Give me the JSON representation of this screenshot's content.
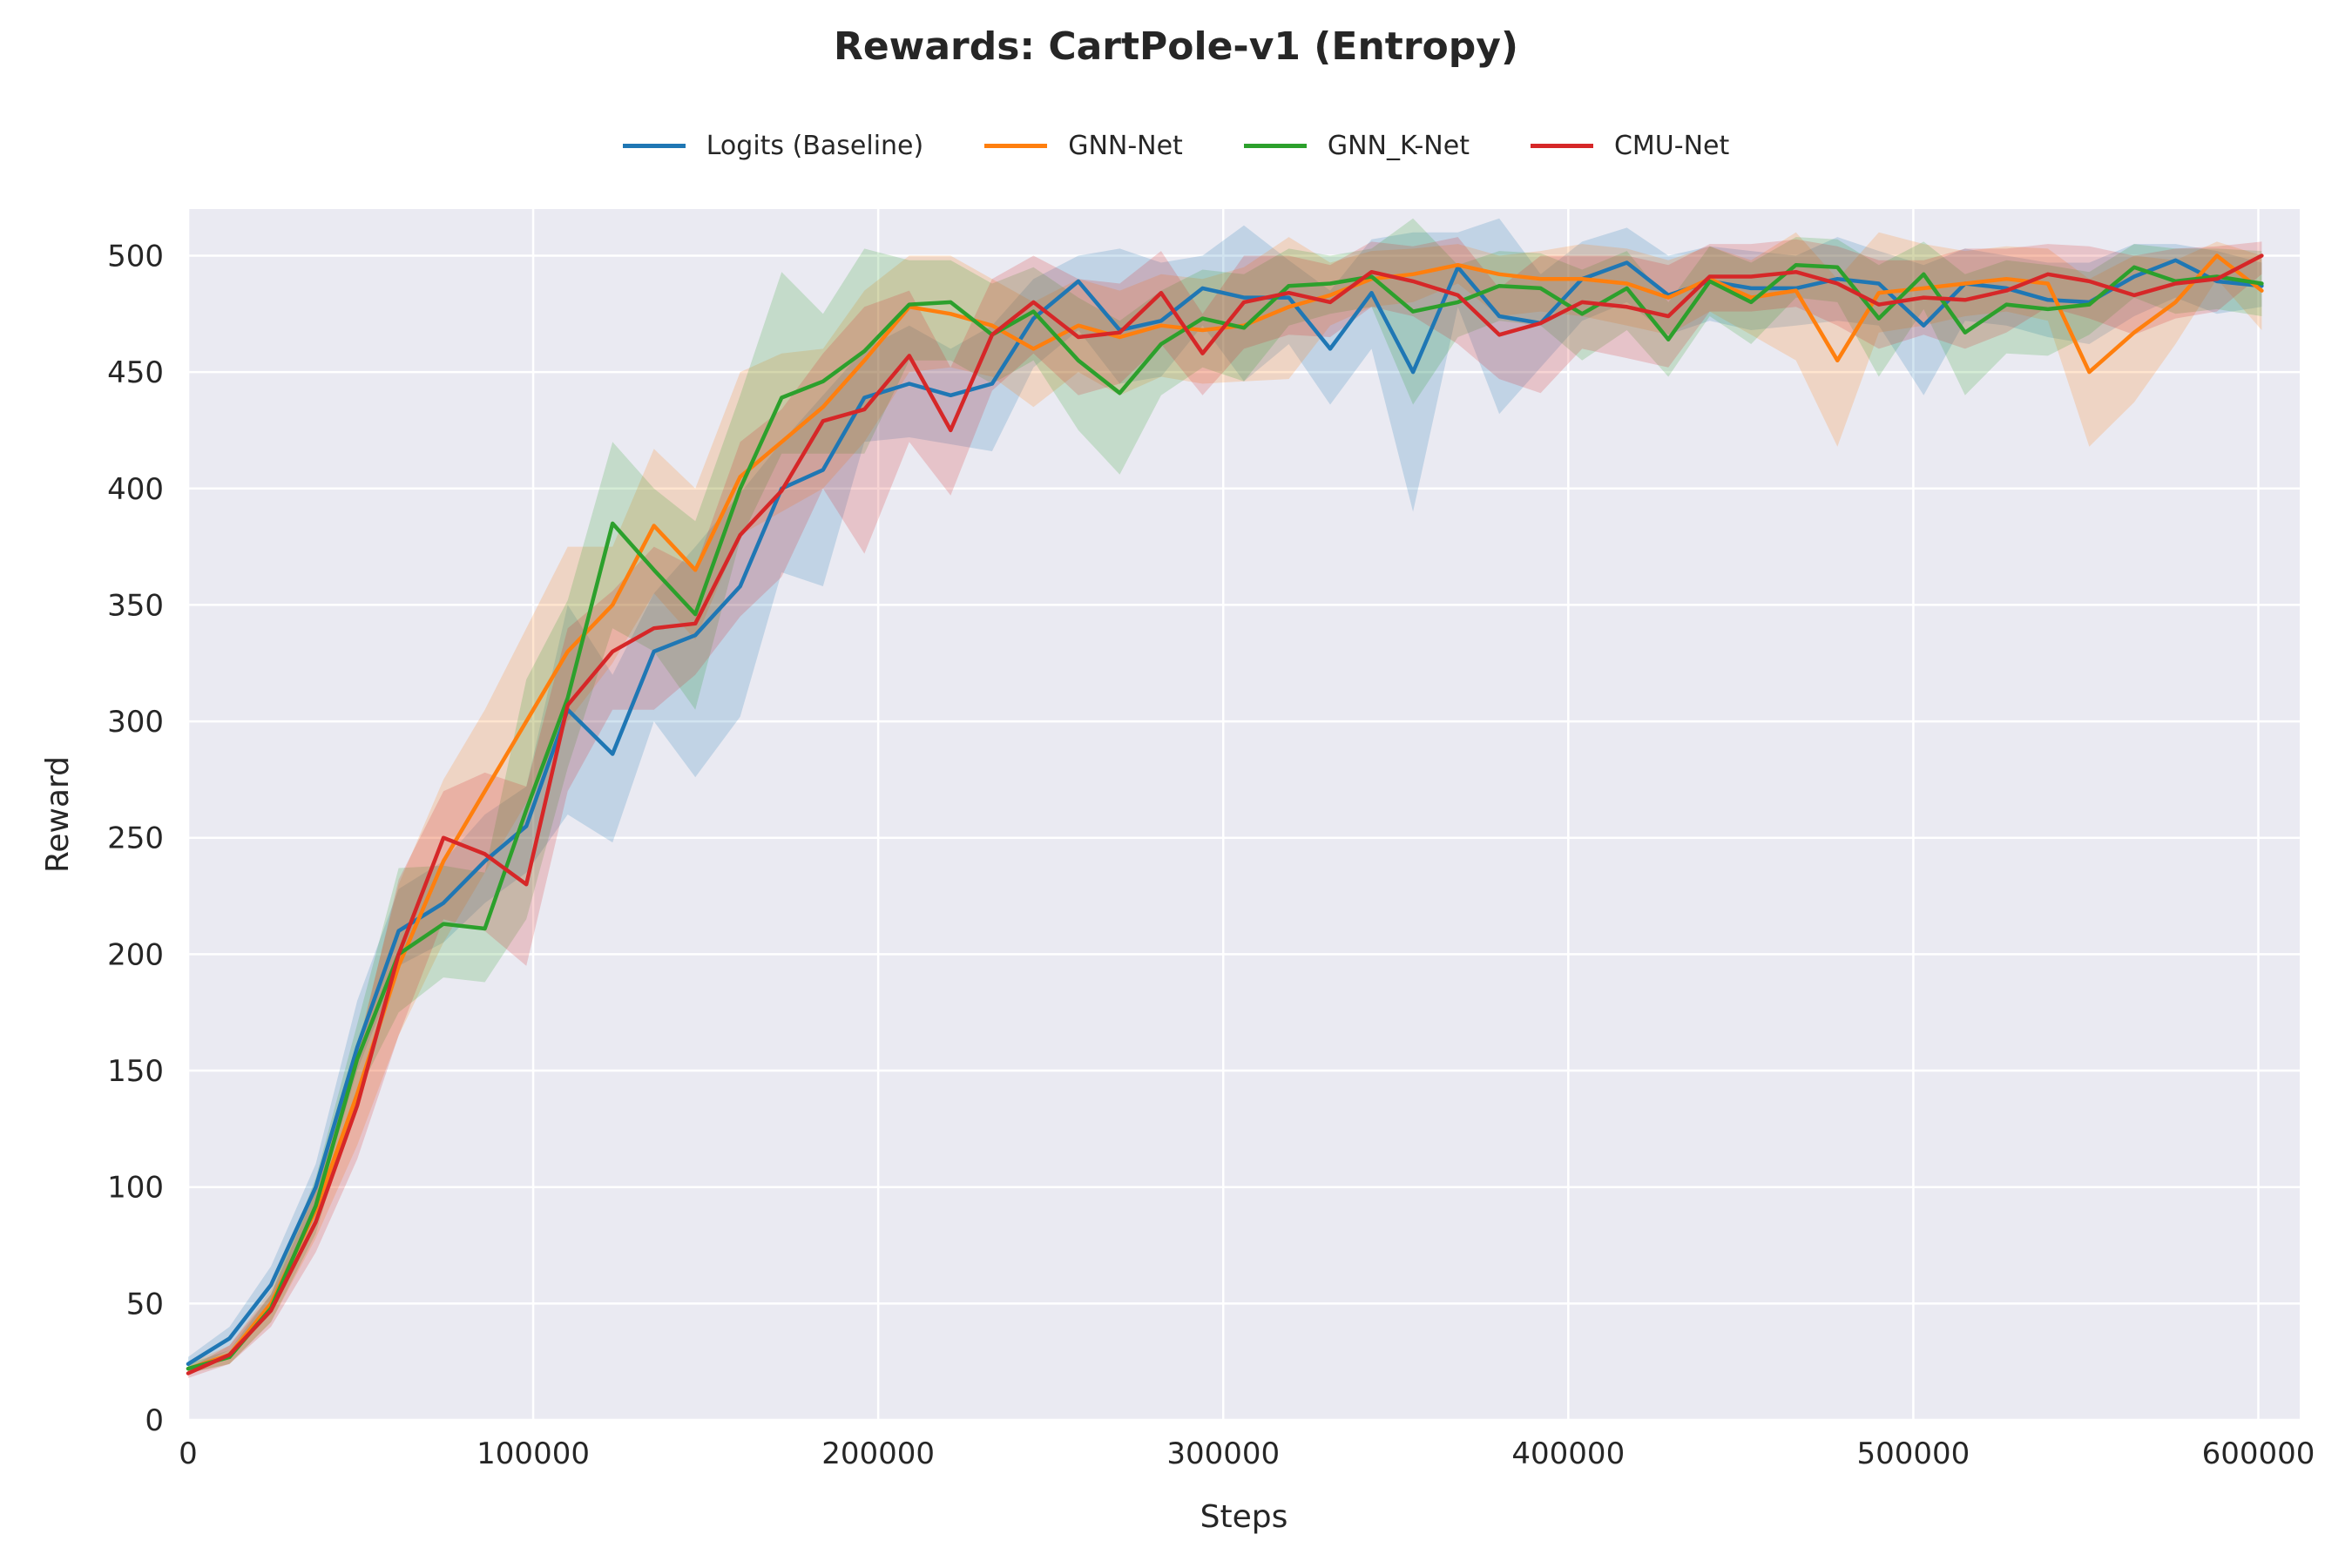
{
  "chart_data": {
    "type": "line",
    "title": "Rewards: CartPole-v1 (Entropy)",
    "xlabel": "Steps",
    "ylabel": "Reward",
    "xlim": [
      0,
      612000
    ],
    "ylim": [
      0,
      520
    ],
    "xticks": [
      0,
      100000,
      200000,
      300000,
      400000,
      500000,
      600000
    ],
    "yticks": [
      0,
      50,
      100,
      150,
      200,
      250,
      300,
      350,
      400,
      450,
      500
    ],
    "grid": true,
    "legend": "top-center",
    "x": [
      0,
      12000,
      24000,
      37000,
      49000,
      61000,
      74000,
      86000,
      98000,
      110000,
      123000,
      135000,
      147000,
      160000,
      172000,
      184000,
      196000,
      209000,
      221000,
      233000,
      245000,
      258000,
      270000,
      282000,
      294000,
      306000,
      319000,
      331000,
      343000,
      355000,
      368000,
      380000,
      392000,
      404000,
      417000,
      429000,
      441000,
      453000,
      466000,
      478000,
      490000,
      503000,
      515000,
      527000,
      539000,
      551000,
      564000,
      576000,
      588000,
      601000
    ],
    "series": [
      {
        "name": "Logits (Baseline)",
        "color": "#1f77b4",
        "values": [
          24,
          35,
          58,
          100,
          160,
          210,
          222,
          240,
          255,
          305,
          286,
          330,
          337,
          358,
          400,
          408,
          439,
          445,
          440,
          445,
          473,
          489,
          468,
          472,
          486,
          482,
          482,
          460,
          484,
          450,
          495,
          474,
          471,
          490,
          497,
          483,
          489,
          486,
          486,
          490,
          488,
          470,
          488,
          486,
          481,
          480,
          491,
          498,
          489,
          487
        ],
        "lower": [
          21,
          30,
          50,
          90,
          150,
          195,
          205,
          222,
          235,
          260,
          248,
          300,
          276,
          302,
          364,
          358,
          420,
          422,
          419,
          416,
          452,
          468,
          445,
          448,
          470,
          446,
          462,
          436,
          460,
          390,
          478,
          432,
          452,
          472,
          480,
          466,
          472,
          468,
          470,
          472,
          470,
          440,
          472,
          470,
          465,
          462,
          474,
          482,
          475,
          478
        ],
        "upper": [
          27,
          40,
          66,
          110,
          180,
          228,
          240,
          260,
          272,
          350,
          320,
          355,
          375,
          398,
          420,
          440,
          460,
          470,
          460,
          470,
          490,
          500,
          503,
          497,
          500,
          513,
          498,
          485,
          507,
          510,
          510,
          516,
          492,
          506,
          512,
          500,
          504,
          502,
          500,
          508,
          502,
          496,
          503,
          500,
          497,
          497,
          505,
          505,
          502,
          497
        ]
      },
      {
        "name": "GNN-Net",
        "color": "#ff7f0e",
        "values": [
          22,
          28,
          50,
          90,
          140,
          195,
          240,
          270,
          300,
          330,
          350,
          384,
          365,
          405,
          420,
          435,
          455,
          478,
          475,
          470,
          460,
          470,
          465,
          470,
          468,
          470,
          478,
          483,
          490,
          492,
          496,
          492,
          490,
          490,
          488,
          482,
          490,
          482,
          485,
          455,
          484,
          486,
          488,
          490,
          488,
          450,
          467,
          480,
          500,
          485
        ],
        "lower": [
          20,
          24,
          42,
          78,
          118,
          165,
          205,
          235,
          265,
          300,
          325,
          355,
          335,
          380,
          390,
          400,
          420,
          450,
          452,
          448,
          435,
          450,
          440,
          448,
          445,
          446,
          447,
          470,
          478,
          480,
          488,
          474,
          476,
          474,
          470,
          466,
          476,
          466,
          455,
          418,
          467,
          470,
          474,
          476,
          472,
          418,
          437,
          462,
          490,
          468
        ],
        "upper": [
          24,
          32,
          56,
          100,
          160,
          230,
          275,
          305,
          340,
          375,
          375,
          417,
          400,
          450,
          458,
          460,
          485,
          500,
          500,
          490,
          480,
          490,
          485,
          492,
          490,
          495,
          508,
          497,
          502,
          503,
          505,
          500,
          502,
          505,
          503,
          498,
          504,
          498,
          510,
          490,
          510,
          505,
          502,
          504,
          503,
          490,
          500,
          498,
          506,
          500
        ]
      },
      {
        "name": "GNN_K-Net",
        "color": "#2ca02c",
        "values": [
          22,
          27,
          48,
          92,
          155,
          200,
          213,
          211,
          262,
          310,
          385,
          365,
          346,
          400,
          439,
          446,
          459,
          479,
          480,
          466,
          476,
          455,
          441,
          462,
          473,
          469,
          487,
          488,
          491,
          476,
          480,
          487,
          486,
          475,
          486,
          464,
          489,
          480,
          496,
          495,
          473,
          492,
          467,
          479,
          477,
          479,
          495,
          489,
          491,
          488
        ],
        "lower": [
          20,
          24,
          42,
          80,
          140,
          175,
          190,
          188,
          215,
          280,
          340,
          330,
          305,
          378,
          415,
          415,
          415,
          455,
          455,
          445,
          455,
          425,
          406,
          440,
          452,
          446,
          470,
          475,
          478,
          436,
          465,
          472,
          470,
          455,
          468,
          448,
          474,
          462,
          482,
          480,
          448,
          477,
          440,
          458,
          457,
          466,
          482,
          475,
          477,
          474
        ],
        "upper": [
          24,
          30,
          54,
          104,
          170,
          237,
          238,
          235,
          318,
          352,
          420,
          400,
          386,
          440,
          493,
          475,
          503,
          498,
          498,
          488,
          495,
          482,
          472,
          485,
          494,
          492,
          503,
          500,
          503,
          516,
          496,
          502,
          501,
          494,
          502,
          480,
          504,
          497,
          508,
          507,
          496,
          506,
          492,
          498,
          496,
          493,
          505,
          503,
          503,
          502
        ]
      },
      {
        "name": "CMU-Net",
        "color": "#d62728",
        "values": [
          20,
          28,
          47,
          85,
          135,
          200,
          250,
          243,
          230,
          307,
          330,
          340,
          342,
          380,
          399,
          429,
          434,
          457,
          425,
          466,
          480,
          465,
          467,
          484,
          458,
          480,
          484,
          480,
          493,
          489,
          483,
          466,
          471,
          480,
          478,
          474,
          491,
          491,
          493,
          488,
          479,
          482,
          481,
          485,
          492,
          489,
          483,
          488,
          490,
          500
        ],
        "lower": [
          18,
          24,
          40,
          72,
          112,
          165,
          215,
          210,
          195,
          270,
          305,
          305,
          320,
          345,
          362,
          400,
          372,
          420,
          397,
          442,
          458,
          440,
          445,
          462,
          440,
          460,
          466,
          465,
          478,
          474,
          462,
          447,
          441,
          460,
          456,
          452,
          476,
          476,
          478,
          470,
          460,
          466,
          460,
          467,
          478,
          473,
          466,
          473,
          476,
          492
        ],
        "upper": [
          22,
          32,
          54,
          98,
          158,
          232,
          270,
          278,
          272,
          340,
          356,
          375,
          366,
          420,
          434,
          458,
          478,
          485,
          452,
          490,
          500,
          490,
          488,
          502,
          475,
          500,
          500,
          496,
          506,
          504,
          508,
          486,
          500,
          500,
          500,
          496,
          505,
          505,
          507,
          504,
          498,
          498,
          503,
          503,
          505,
          504,
          500,
          503,
          504,
          506
        ]
      }
    ]
  }
}
